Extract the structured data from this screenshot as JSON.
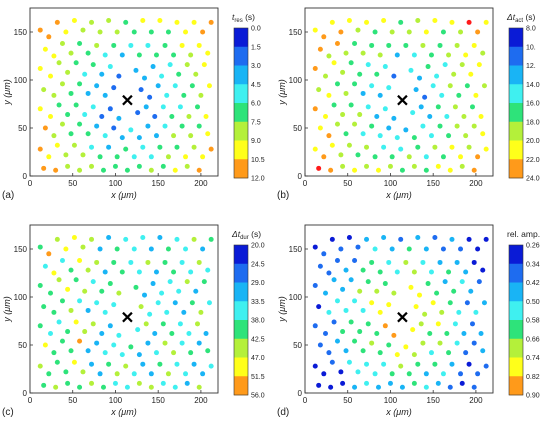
{
  "figure": {
    "panel_labels": [
      "(a)",
      "(b)",
      "(c)",
      "(d)"
    ]
  },
  "chart_data": [
    {
      "type": "scatter",
      "panel": "(a)",
      "xlabel": "x (μm)",
      "ylabel": "y (μm)",
      "xlim": [
        0,
        220
      ],
      "ylim": [
        0,
        175
      ],
      "xticks": [
        0,
        50,
        100,
        150,
        200
      ],
      "yticks": [
        0,
        50,
        100,
        150
      ],
      "colorbar_title": "t_res (s)",
      "colorbar_title_main": "t",
      "colorbar_title_sub": "res",
      "colorbar_title_unit": " (s)",
      "colorbar_ticks": [
        "0.0",
        "1.5",
        "3.0",
        "4.5",
        "6.0",
        "7.5",
        "9.0",
        "10.5",
        "12.0"
      ],
      "marker": {
        "x": 114,
        "y": 79
      }
    },
    {
      "type": "scatter",
      "panel": "(b)",
      "xlabel": "x (μm)",
      "ylabel": "y (μm)",
      "xlim": [
        0,
        220
      ],
      "ylim": [
        0,
        175
      ],
      "xticks": [
        0,
        50,
        100,
        150,
        200
      ],
      "yticks": [
        0,
        50,
        100,
        150
      ],
      "colorbar_title": "Δt_act (s)",
      "colorbar_title_main": "Δt",
      "colorbar_title_sub": "act",
      "colorbar_title_unit": " (s)",
      "colorbar_ticks": [
        "8.0",
        "10.",
        "12.",
        "14.0",
        "16.0",
        "18.0",
        "20.0",
        "22.0",
        "24.0"
      ],
      "marker": {
        "x": 114,
        "y": 79
      }
    },
    {
      "type": "scatter",
      "panel": "(c)",
      "xlabel": "x (μm)",
      "ylabel": "y (μm)",
      "xlim": [
        0,
        220
      ],
      "ylim": [
        0,
        175
      ],
      "xticks": [
        0,
        50,
        100,
        150,
        200
      ],
      "yticks": [
        0,
        50,
        100,
        150
      ],
      "colorbar_title": "Δt_dur (s)",
      "colorbar_title_main": "Δt",
      "colorbar_title_sub": "dur",
      "colorbar_title_unit": " (s)",
      "colorbar_ticks": [
        "20.0",
        "24.5",
        "29.0",
        "33.5",
        "38.0",
        "42.5",
        "47.0",
        "51.5",
        "56.0"
      ],
      "marker": {
        "x": 114,
        "y": 79
      }
    },
    {
      "type": "scatter",
      "panel": "(d)",
      "xlabel": "x (μm)",
      "ylabel": "y (μm)",
      "xlim": [
        0,
        220
      ],
      "ylim": [
        0,
        175
      ],
      "xticks": [
        0,
        50,
        100,
        150,
        200
      ],
      "yticks": [
        0,
        50,
        100,
        150
      ],
      "colorbar_title": "rel. amp.",
      "colorbar_title_main": "rel. amp.",
      "colorbar_title_sub": "",
      "colorbar_title_unit": "",
      "colorbar_ticks": [
        "0.26",
        "0.34",
        "0.42",
        "0.50",
        "0.58",
        "0.66",
        "0.74",
        "0.82",
        "0.90"
      ],
      "marker": {
        "x": 114,
        "y": 79
      }
    }
  ],
  "colors": {
    "scale": [
      "#0a1bd6",
      "#1e6cf0",
      "#19b4f5",
      "#3ff0f0",
      "#2ee37a",
      "#b4f03a",
      "#ffff1a",
      "#ff9a1a",
      "#ff1a1a"
    ],
    "axis": "#333333",
    "marker": "#000000"
  },
  "points": {
    "xy": [
      [
        12,
        152
      ],
      [
        22,
        145
      ],
      [
        32,
        160
      ],
      [
        42,
        150
      ],
      [
        52,
        162
      ],
      [
        62,
        152
      ],
      [
        72,
        160
      ],
      [
        82,
        150
      ],
      [
        92,
        162
      ],
      [
        102,
        150
      ],
      [
        112,
        160
      ],
      [
        122,
        150
      ],
      [
        132,
        162
      ],
      [
        142,
        150
      ],
      [
        152,
        162
      ],
      [
        162,
        150
      ],
      [
        172,
        160
      ],
      [
        182,
        150
      ],
      [
        192,
        160
      ],
      [
        202,
        150
      ],
      [
        212,
        160
      ],
      [
        18,
        132
      ],
      [
        28,
        125
      ],
      [
        38,
        138
      ],
      [
        48,
        128
      ],
      [
        58,
        138
      ],
      [
        68,
        128
      ],
      [
        78,
        136
      ],
      [
        88,
        126
      ],
      [
        98,
        136
      ],
      [
        108,
        126
      ],
      [
        118,
        136
      ],
      [
        128,
        126
      ],
      [
        138,
        136
      ],
      [
        148,
        126
      ],
      [
        158,
        136
      ],
      [
        168,
        126
      ],
      [
        178,
        136
      ],
      [
        188,
        126
      ],
      [
        198,
        136
      ],
      [
        208,
        128
      ],
      [
        12,
        112
      ],
      [
        24,
        104
      ],
      [
        34,
        118
      ],
      [
        44,
        108
      ],
      [
        54,
        118
      ],
      [
        64,
        106
      ],
      [
        74,
        116
      ],
      [
        84,
        106
      ],
      [
        94,
        114
      ],
      [
        104,
        104
      ],
      [
        124,
        110
      ],
      [
        134,
        102
      ],
      [
        144,
        114
      ],
      [
        154,
        104
      ],
      [
        164,
        116
      ],
      [
        174,
        106
      ],
      [
        184,
        116
      ],
      [
        194,
        106
      ],
      [
        204,
        116
      ],
      [
        16,
        90
      ],
      [
        28,
        84
      ],
      [
        38,
        96
      ],
      [
        48,
        86
      ],
      [
        58,
        96
      ],
      [
        68,
        86
      ],
      [
        78,
        94
      ],
      [
        88,
        84
      ],
      [
        98,
        92
      ],
      [
        130,
        90
      ],
      [
        140,
        82
      ],
      [
        150,
        94
      ],
      [
        160,
        84
      ],
      [
        170,
        94
      ],
      [
        180,
        84
      ],
      [
        190,
        94
      ],
      [
        200,
        84
      ],
      [
        210,
        94
      ],
      [
        12,
        70
      ],
      [
        24,
        62
      ],
      [
        34,
        74
      ],
      [
        44,
        64
      ],
      [
        54,
        74
      ],
      [
        64,
        64
      ],
      [
        74,
        72
      ],
      [
        84,
        62
      ],
      [
        94,
        70
      ],
      [
        104,
        60
      ],
      [
        126,
        66
      ],
      [
        136,
        72
      ],
      [
        146,
        62
      ],
      [
        156,
        72
      ],
      [
        166,
        62
      ],
      [
        176,
        72
      ],
      [
        186,
        62
      ],
      [
        196,
        72
      ],
      [
        206,
        62
      ],
      [
        18,
        50
      ],
      [
        28,
        42
      ],
      [
        38,
        54
      ],
      [
        48,
        44
      ],
      [
        58,
        54
      ],
      [
        68,
        44
      ],
      [
        78,
        52
      ],
      [
        88,
        42
      ],
      [
        98,
        50
      ],
      [
        108,
        40
      ],
      [
        118,
        48
      ],
      [
        128,
        40
      ],
      [
        138,
        52
      ],
      [
        148,
        42
      ],
      [
        158,
        52
      ],
      [
        168,
        42
      ],
      [
        178,
        52
      ],
      [
        188,
        42
      ],
      [
        198,
        52
      ],
      [
        208,
        44
      ],
      [
        12,
        28
      ],
      [
        22,
        20
      ],
      [
        32,
        32
      ],
      [
        42,
        22
      ],
      [
        52,
        32
      ],
      [
        62,
        22
      ],
      [
        72,
        30
      ],
      [
        82,
        20
      ],
      [
        92,
        30
      ],
      [
        102,
        20
      ],
      [
        112,
        28
      ],
      [
        122,
        20
      ],
      [
        132,
        30
      ],
      [
        142,
        20
      ],
      [
        152,
        30
      ],
      [
        162,
        20
      ],
      [
        172,
        30
      ],
      [
        182,
        20
      ],
      [
        192,
        30
      ],
      [
        202,
        20
      ],
      [
        212,
        28
      ],
      [
        16,
        8
      ],
      [
        30,
        6
      ],
      [
        44,
        10
      ],
      [
        58,
        6
      ],
      [
        72,
        10
      ],
      [
        86,
        6
      ],
      [
        100,
        10
      ],
      [
        114,
        6
      ],
      [
        128,
        10
      ],
      [
        142,
        6
      ],
      [
        156,
        10
      ],
      [
        170,
        6
      ],
      [
        184,
        10
      ],
      [
        198,
        6
      ]
    ]
  }
}
